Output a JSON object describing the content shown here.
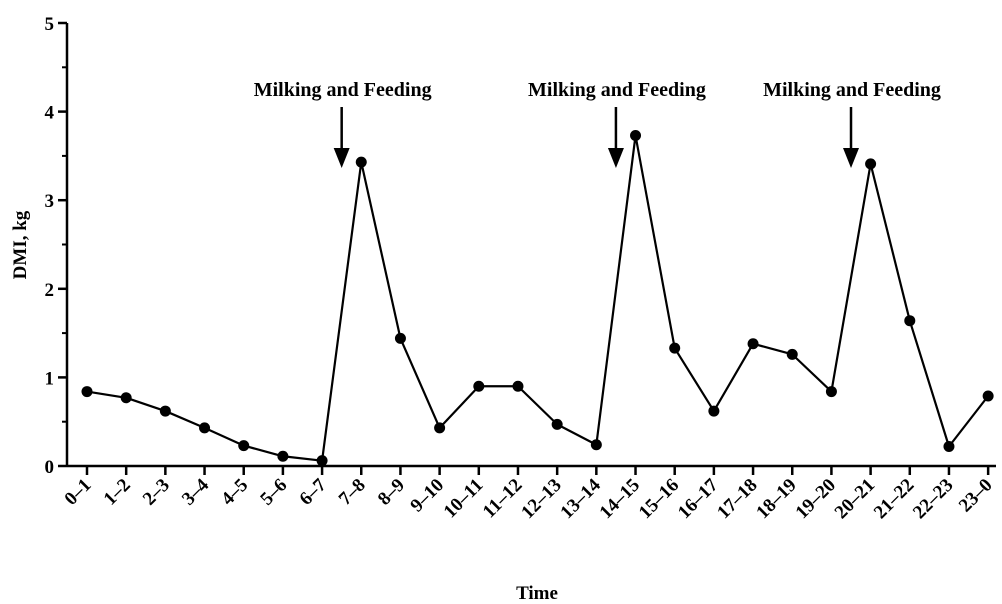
{
  "chart_data": {
    "type": "line",
    "title": "",
    "xlabel": "Time",
    "ylabel": "DMI, kg",
    "ylim": [
      0,
      5
    ],
    "yticks": [
      "0",
      "1",
      "2",
      "3",
      "4",
      "5"
    ],
    "categories": [
      "0–1",
      "1–2",
      "2–3",
      "3–4",
      "4–5",
      "5–6",
      "6–7",
      "7–8",
      "8–9",
      "9–10",
      "10–11",
      "11–12",
      "12–13",
      "13–14",
      "14–15",
      "15–16",
      "16–17",
      "17–18",
      "18–19",
      "19–20",
      "20–21",
      "21–22",
      "22–23",
      "23–0"
    ],
    "series": [
      {
        "values": [
          0.84,
          0.77,
          0.62,
          0.43,
          0.23,
          0.11,
          0.06,
          3.43,
          1.44,
          0.43,
          0.9,
          0.9,
          0.47,
          0.24,
          3.73,
          1.33,
          0.62,
          1.38,
          1.26,
          0.84,
          3.41,
          1.64,
          0.22,
          0.79
        ]
      }
    ],
    "annotations": [
      {
        "text": "Milking and Feeding",
        "x_between": [
          6,
          7
        ]
      },
      {
        "text": "Milking and Feeding",
        "x_between": [
          13,
          14
        ]
      },
      {
        "text": "Milking and Feeding",
        "x_between": [
          19,
          20
        ]
      }
    ],
    "grid": false,
    "legend": "none"
  }
}
